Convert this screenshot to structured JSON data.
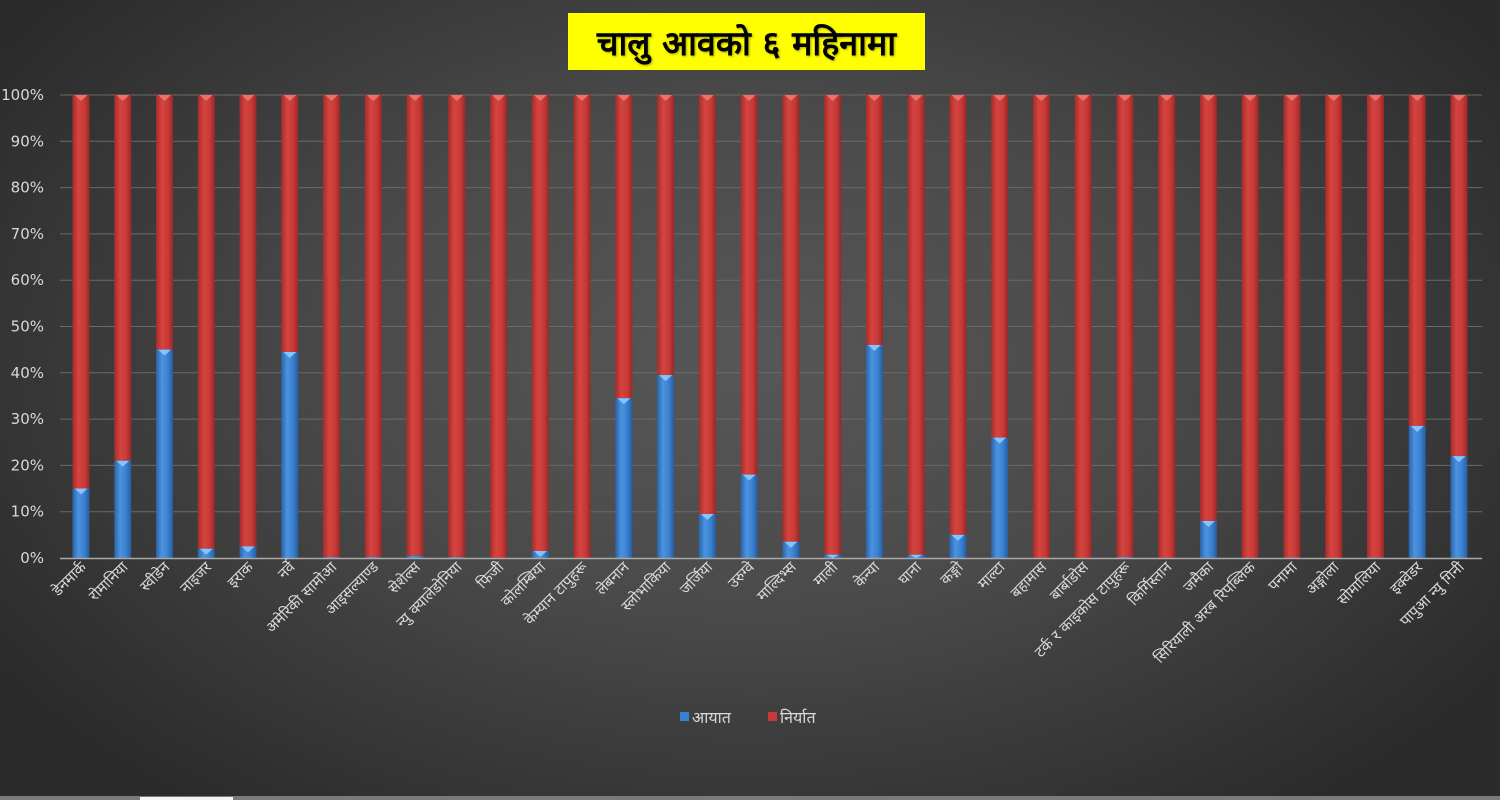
{
  "title": "चालु आवको ६ महिनामा",
  "colors": {
    "import": "#3a80d0",
    "export": "#c83a38",
    "title_bg": "#ffff00",
    "gridline": "#6a6a6a",
    "axis_text": "#d9d9d9"
  },
  "legend": {
    "items": [
      {
        "label": "आयात",
        "color": "#3a80d0"
      },
      {
        "label": "निर्यात",
        "color": "#c83a38"
      }
    ]
  },
  "chart_data": {
    "type": "bar",
    "stacked": "percent",
    "title": "चालु आवको ६ महिनामा",
    "xlabel": "",
    "ylabel": "",
    "ylim": [
      0,
      100
    ],
    "yticks": [
      "0%",
      "10%",
      "20%",
      "30%",
      "40%",
      "50%",
      "60%",
      "70%",
      "80%",
      "90%",
      "100%"
    ],
    "grid": true,
    "legend_position": "bottom",
    "categories": [
      "डेनमार्क",
      "रोमानिया",
      "स्वीडेन",
      "नाइजर",
      "इराक",
      "नर्वे",
      "अमेरिकी सामोआ",
      "आइसल्याण्ड",
      "सेशेल्स",
      "न्यु क्यालेडोनिया",
      "फिजी",
      "कोलम्बिया",
      "केम्यान टापुहरू",
      "लेबनान",
      "स्लोभाकिया",
      "जर्जिया",
      "उरुग्वे",
      "माल्दिभ्स",
      "माली",
      "केन्या",
      "घाना",
      "कङ्गो",
      "माल्टा",
      "बहामास",
      "बार्बाडोस",
      "टर्क र काइकोस टापुहरू",
      "किर्गिस्तान",
      "जमैका",
      "सिरियाली अरब रिपब्लिक",
      "पनामा",
      "अङ्गोला",
      "सोमालिया",
      "इक्वेडर",
      "पापुआ न्यु गिनी"
    ],
    "series": [
      {
        "name": "आयात",
        "values": [
          15,
          21,
          45,
          2,
          2.5,
          44.5,
          0.2,
          0.2,
          0.5,
          0.2,
          0,
          1.5,
          0,
          34.5,
          39.5,
          9.5,
          18,
          3.5,
          0.7,
          46,
          0.7,
          5,
          26,
          0,
          0,
          0.2,
          0,
          8,
          0,
          0.1,
          0,
          0.1,
          28.5,
          22
        ]
      },
      {
        "name": "निर्यात",
        "values": [
          85,
          79,
          55,
          98,
          97.5,
          55.5,
          99.8,
          99.8,
          99.5,
          99.8,
          100,
          98.5,
          100,
          65.5,
          60.5,
          90.5,
          82,
          96.5,
          99.3,
          54,
          99.3,
          95,
          74,
          100,
          100,
          99.8,
          100,
          92,
          100,
          99.9,
          100,
          99.9,
          71.5,
          78
        ]
      }
    ]
  }
}
